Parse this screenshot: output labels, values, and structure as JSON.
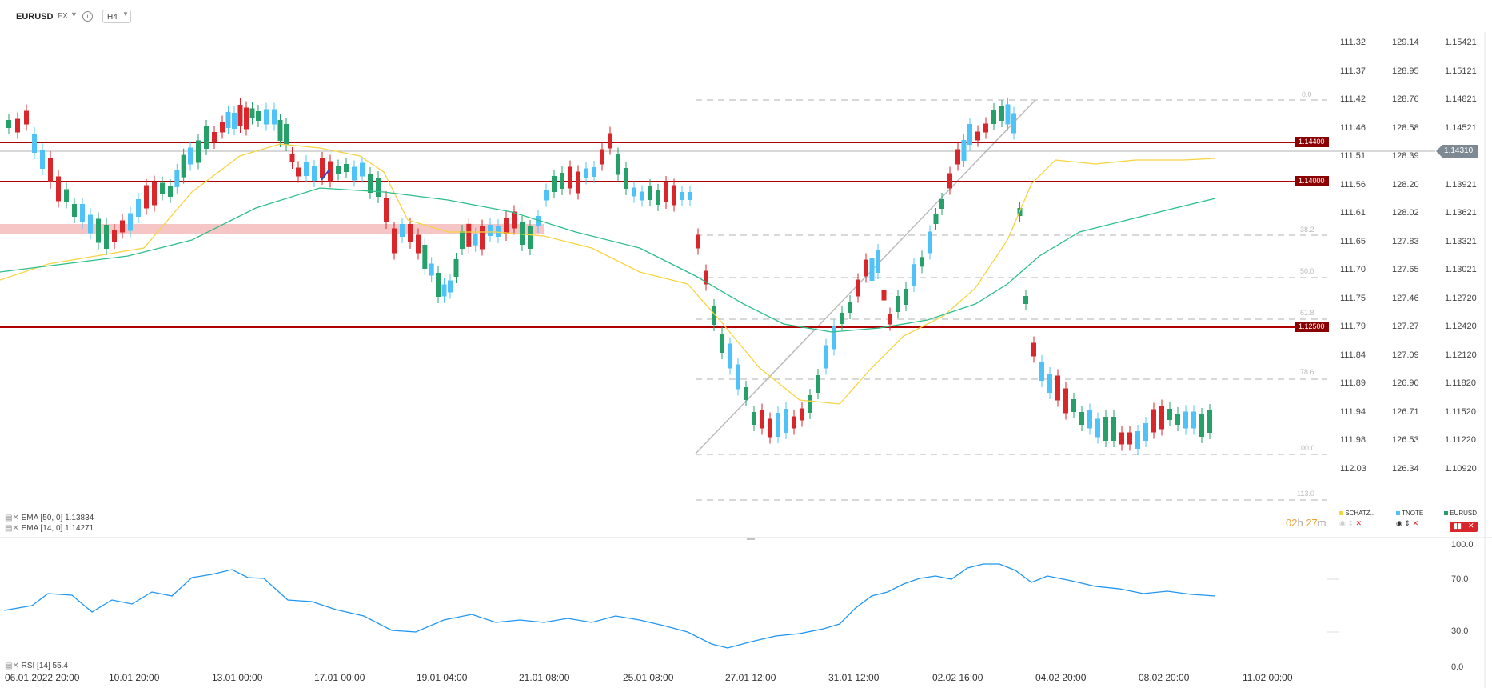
{
  "header": {
    "symbol": "EURUSD",
    "market": "FX",
    "info_icon": "info-icon",
    "timeframe": "H4"
  },
  "price_axes": {
    "schatz": [
      "111.32",
      "111.37",
      "111.42",
      "111.46",
      "111.51",
      "111.56",
      "111.61",
      "111.65",
      "111.70",
      "111.75",
      "111.79",
      "111.84",
      "111.89",
      "111.94",
      "111.98",
      "112.03"
    ],
    "tnote": [
      "129.14",
      "128.95",
      "128.76",
      "128.58",
      "128.39",
      "128.20",
      "128.02",
      "127.83",
      "127.65",
      "127.46",
      "127.27",
      "127.09",
      "126.90",
      "126.71",
      "126.53",
      "126.34"
    ],
    "eurusd": [
      "1.15421",
      "1.15121",
      "1.14821",
      "1.14521",
      "1.14221",
      "1.13921",
      "1.13621",
      "1.13321",
      "1.13021",
      "1.12720",
      "1.12420",
      "1.12120",
      "1.11820",
      "1.11520",
      "1.11220",
      "1.10920"
    ]
  },
  "levels": {
    "l1": "1.14400",
    "l2": "1.14000",
    "l3": "1.12500",
    "current": "1.14310"
  },
  "fib": [
    "0.0",
    "38.2",
    "50.0",
    "61.8",
    "78.6",
    "100.0",
    "113.0"
  ],
  "indicators": {
    "ema50": "EMA  [50, 0]  1.13834",
    "ema14": "EMA  [14, 0]  1.14271"
  },
  "timer": {
    "hours": "02",
    "h": "h",
    "minutes": "27",
    "m": "m"
  },
  "overlays": {
    "schatz": "SCHATZ..",
    "tnote": "TNOTE",
    "eurusd": "EURUSD"
  },
  "rsi": {
    "label": "RSI [14]  55.4",
    "axis": [
      "100.0",
      "70.0",
      "30.0",
      "0.0"
    ]
  },
  "x_axis": [
    "06.01.2022  20:00",
    "10.01  20:00",
    "13.01  00:00",
    "17.01  00:00",
    "19.01  04:00",
    "21.01  08:00",
    "25.01  08:00",
    "27.01  12:00",
    "31.01  12:00",
    "02.02  16:00",
    "04.02  20:00",
    "08.02  20:00",
    "11.02  00:00"
  ],
  "colors": {
    "up": "#26a069",
    "down": "#d9262b",
    "tnote": "#4fc3f7",
    "ema14": "#f5d442",
    "ema50": "#2bbf8a",
    "level": "#b00000",
    "rsi": "#2196f3"
  }
}
